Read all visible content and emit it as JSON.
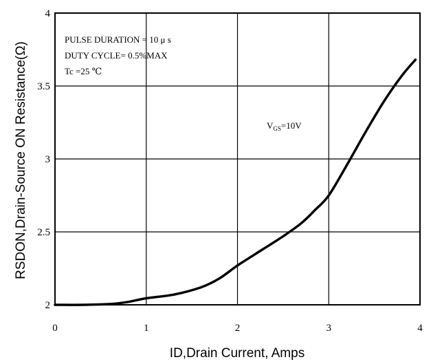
{
  "chart_data": {
    "type": "line",
    "xlabel": "ID,Drain Current, Amps",
    "ylabel": "RSDON,Drain-Source ON Resistance(Ω)",
    "xlim": [
      0,
      4
    ],
    "ylim": [
      2,
      4
    ],
    "grid": true,
    "x_ticks": [
      "0",
      "1",
      "2",
      "3",
      "4"
    ],
    "y_ticks": [
      "2",
      "2.5",
      "3",
      "3.5",
      "4"
    ],
    "series": [
      {
        "name": "VGS=10V",
        "x": [
          0,
          0.3,
          0.6,
          0.8,
          1.0,
          1.3,
          1.6,
          1.8,
          2.0,
          2.2,
          2.5,
          2.7,
          2.85,
          3.0,
          3.2,
          3.4,
          3.6,
          3.8,
          3.95
        ],
        "y": [
          2.0,
          2.0,
          2.005,
          2.02,
          2.045,
          2.07,
          2.12,
          2.18,
          2.27,
          2.35,
          2.47,
          2.56,
          2.65,
          2.75,
          2.96,
          3.18,
          3.39,
          3.57,
          3.68
        ]
      }
    ],
    "annotation": {
      "lines": [
        "PULSE    DURATION = 10 μ s",
        "DUTY    CYCLE= 0.5%MAX",
        "Tc =25  ℃"
      ]
    },
    "series_label": {
      "main": "V",
      "sub": "GS",
      "suffix": "=10V"
    }
  }
}
